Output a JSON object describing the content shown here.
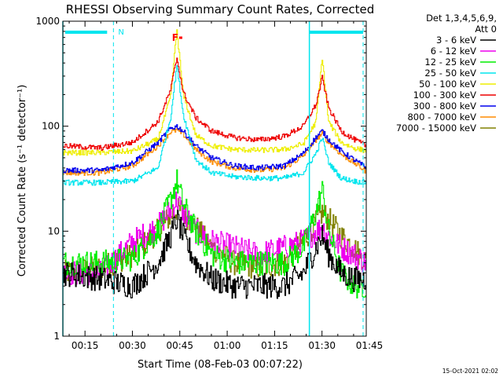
{
  "chart_data": {
    "type": "line",
    "title": "RHESSI Observing Summary Count Rates, Corrected",
    "xlabel": "Start Time (08-Feb-03 00:07:22)",
    "ylabel": "Corrected Count Rate (s⁻¹ detector⁻¹)",
    "yscale": "log",
    "ylim": [
      1,
      1000
    ],
    "xlim_minutes": [
      8,
      104
    ],
    "x_ticks": [
      {
        "m": 15,
        "label": "00:15"
      },
      {
        "m": 30,
        "label": "00:30"
      },
      {
        "m": 45,
        "label": "00:45"
      },
      {
        "m": 60,
        "label": "01:00"
      },
      {
        "m": 75,
        "label": "01:15"
      },
      {
        "m": 90,
        "label": "01:30"
      },
      {
        "m": 105,
        "label": "01:45"
      }
    ],
    "y_ticks": [
      {
        "v": 1,
        "label": "1"
      },
      {
        "v": 10,
        "label": "10"
      },
      {
        "v": 100,
        "label": "100"
      },
      {
        "v": 1000,
        "label": "1000"
      }
    ],
    "legend_title": [
      "Det 1,3,4,5,6,9,",
      "Att 0"
    ],
    "legend_position": "right",
    "timestamp": "15-Oct-2021 02:02",
    "annotations": [
      {
        "text": "N",
        "color": "#00e5ee"
      },
      {
        "text": "F",
        "color": "#ff0000"
      }
    ],
    "x": [
      8,
      20,
      30,
      38,
      42,
      44,
      46,
      50,
      55,
      62,
      70,
      78,
      84,
      88,
      90,
      92,
      96,
      100,
      104
    ],
    "series": [
      {
        "name": "3 - 6 keV",
        "color": "#000000",
        "values": [
          4,
          3.5,
          3,
          5,
          9,
          13,
          9,
          5,
          3.5,
          3,
          3,
          3,
          4,
          7,
          9,
          6,
          4,
          3.5,
          3.5
        ]
      },
      {
        "name": "6 - 12 keV",
        "color": "#ee00ee",
        "values": [
          4,
          4,
          8,
          11,
          16,
          20,
          15,
          10,
          8,
          7,
          6,
          7,
          8,
          10,
          11,
          9,
          7,
          6,
          5
        ]
      },
      {
        "name": "12 - 25 keV",
        "color": "#00ee00",
        "values": [
          5,
          5,
          5.5,
          10,
          20,
          30,
          18,
          10,
          6,
          5,
          5,
          5,
          7,
          15,
          25,
          10,
          4,
          3,
          3
        ]
      },
      {
        "name": "25 - 50 keV",
        "color": "#00e5ee",
        "values": [
          29,
          29,
          30,
          40,
          120,
          380,
          130,
          48,
          36,
          33,
          32,
          32,
          36,
          55,
          78,
          45,
          32,
          30,
          29
        ]
      },
      {
        "name": "50 - 100 keV",
        "color": "#eeee00",
        "values": [
          56,
          56,
          58,
          75,
          190,
          820,
          200,
          82,
          65,
          60,
          59,
          60,
          68,
          110,
          450,
          110,
          70,
          62,
          58
        ]
      },
      {
        "name": "100 - 300 keV",
        "color": "#ee0000",
        "values": [
          65,
          62,
          70,
          110,
          220,
          450,
          210,
          120,
          90,
          78,
          74,
          80,
          100,
          160,
          290,
          150,
          90,
          75,
          65
        ]
      },
      {
        "name": "300 - 800 keV",
        "color": "#0000ee",
        "values": [
          38,
          38,
          45,
          70,
          95,
          100,
          90,
          65,
          50,
          42,
          40,
          42,
          55,
          78,
          90,
          75,
          58,
          48,
          40
        ]
      },
      {
        "name": "800 - 7000 keV",
        "color": "#ff8c00",
        "values": [
          36,
          36,
          42,
          65,
          88,
          92,
          84,
          60,
          46,
          40,
          38,
          40,
          52,
          74,
          85,
          70,
          54,
          45,
          37
        ]
      },
      {
        "name": "7000 - 15000 keV",
        "color": "#808000",
        "values": [
          4,
          4.5,
          6,
          10,
          14,
          16,
          15,
          11,
          7,
          5,
          4.5,
          5,
          8,
          12,
          15,
          13,
          9,
          7,
          5
        ]
      }
    ],
    "att_bars_color": "#00e5ee"
  }
}
